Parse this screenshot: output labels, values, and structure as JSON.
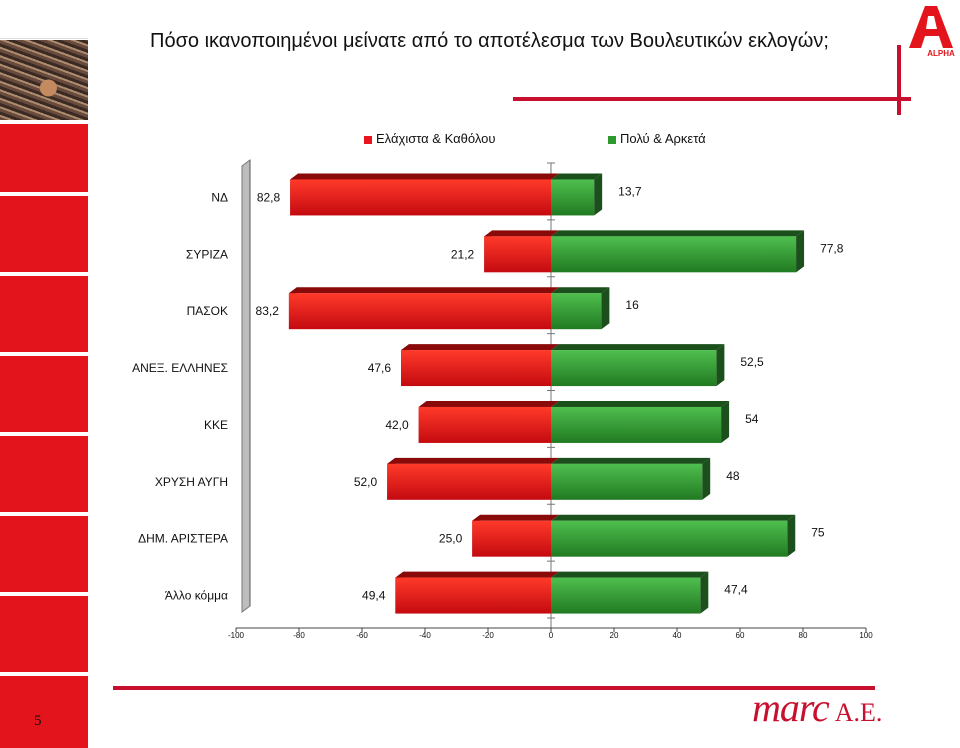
{
  "title": "Πόσο ικανοποιημένοι μείνατε από το αποτέλεσμα των Βουλευτικών εκλογών;",
  "page_number": "5",
  "footer_brand": {
    "logo_text": "marc",
    "suffix": "A.E."
  },
  "header_logo": {
    "text": "ALPHA"
  },
  "colors": {
    "accent": "#c8102e",
    "negative": "#e8151c",
    "positive": "#2e9a2e"
  },
  "chart_data": {
    "type": "bar",
    "orientation": "horizontal",
    "title": "",
    "xlabel": "",
    "ylabel": "",
    "categories": [
      "ΝΔ",
      "ΣΥΡΙΖΑ",
      "ΠΑΣΟΚ",
      "ΑΝΕΞ. ΕΛΛΗΝΕΣ",
      "ΚΚΕ",
      "ΧΡΥΣΗ ΑΥΓΗ",
      "ΔΗΜ. ΑΡΙΣΤΕΡΑ",
      "Άλλο κόμμα"
    ],
    "series": [
      {
        "name": "Ελάχιστα & Καθόλου",
        "values": [
          82.8,
          21.2,
          83.2,
          47.6,
          42.0,
          52.0,
          25.0,
          49.4
        ],
        "labels": [
          "82,8",
          "21,2",
          "83,2",
          "47,6",
          "42,0",
          "52,0",
          "25,0",
          "49,4"
        ],
        "direction": "negative",
        "color": "#e8151c"
      },
      {
        "name": "Πολύ & Αρκετά",
        "values": [
          13.7,
          77.8,
          16,
          52.5,
          54,
          48,
          75,
          47.4
        ],
        "labels": [
          "13,7",
          "77,8",
          "16",
          "52,5",
          "54",
          "48",
          "75",
          "47,4"
        ],
        "direction": "positive",
        "color": "#2e9a2e"
      }
    ],
    "xlim": [
      -100,
      100
    ],
    "xticks": [
      "-100",
      "-80",
      "-60",
      "-40",
      "-20",
      "0",
      "20",
      "40",
      "60",
      "80",
      "100"
    ],
    "legend_position": "top",
    "grid": false,
    "style": "3d"
  }
}
